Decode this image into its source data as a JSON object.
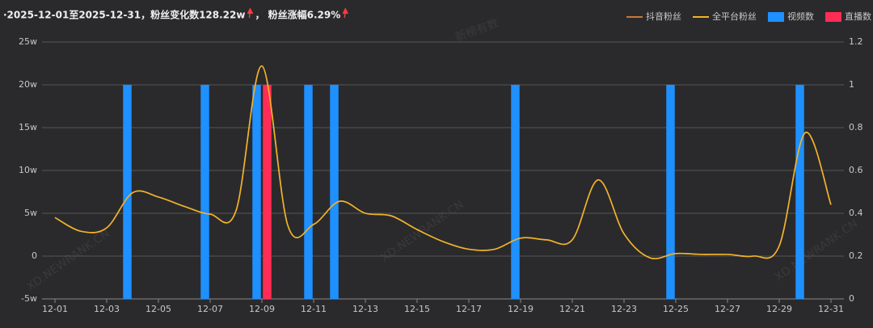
{
  "chart_data": {
    "type": "line-bar",
    "title": "·2025-12-01至2025-12-31，粉丝变化数128.22w",
    "subtitle": "，  粉丝涨幅6.29%",
    "watermarks": [
      "新榜有数",
      "XD.NEWRANK.CN"
    ],
    "categories": [
      "12-01",
      null,
      "12-03",
      null,
      "12-05",
      null,
      "12-07",
      null,
      "12-09",
      null,
      "12-11",
      null,
      "12-13",
      null,
      "12-15",
      null,
      "12-17",
      null,
      "12-19",
      null,
      "12-21",
      null,
      "12-23",
      null,
      "12-25",
      null,
      "12-27",
      null,
      "12-29",
      null,
      "12-31"
    ],
    "series": [
      {
        "name": "抖音粉丝",
        "type": "line",
        "color": "#c7793a",
        "values": [
          4.5,
          2.9,
          3.3,
          7.4,
          6.9,
          5.8,
          4.9,
          5.3,
          22.2,
          3.6,
          3.7,
          6.4,
          5.0,
          4.7,
          3.1,
          1.7,
          0.8,
          0.8,
          2.1,
          1.9,
          1.9,
          8.9,
          2.6,
          -0.2,
          0.3,
          0.2,
          0.2,
          0.0,
          1.2,
          14.4,
          6.0
        ]
      },
      {
        "name": "全平台粉丝",
        "type": "line",
        "color": "#f0b429",
        "values": [
          4.5,
          2.9,
          3.3,
          7.4,
          6.9,
          5.8,
          4.9,
          5.3,
          22.2,
          3.6,
          3.7,
          6.4,
          5.0,
          4.7,
          3.1,
          1.7,
          0.8,
          0.8,
          2.1,
          1.9,
          1.9,
          8.9,
          2.6,
          -0.2,
          0.3,
          0.2,
          0.2,
          0.0,
          1.2,
          14.4,
          6.0
        ]
      },
      {
        "name": "视频数",
        "type": "bar",
        "axis": "y2",
        "color": "#1e90ff",
        "values": [
          0,
          0,
          0,
          1,
          0,
          0,
          1,
          0,
          1,
          0,
          1,
          1,
          0,
          0,
          0,
          0,
          0,
          0,
          1,
          0,
          0,
          0,
          0,
          0,
          1,
          0,
          0,
          0,
          0,
          1,
          0
        ]
      },
      {
        "name": "直播数",
        "type": "bar",
        "axis": "y2",
        "color": "#ff2d55",
        "values": [
          0,
          0,
          0,
          0,
          0,
          0,
          0,
          0,
          1,
          0,
          0,
          0,
          0,
          0,
          0,
          0,
          0,
          0,
          0,
          0,
          0,
          0,
          0,
          0,
          0,
          0,
          0,
          0,
          0,
          0,
          0
        ]
      }
    ],
    "ylim": [
      -5,
      25
    ],
    "yticks": [
      {
        "value": -5,
        "label": "-5w"
      },
      0,
      {
        "value": 5,
        "label": "5w"
      },
      {
        "value": 10,
        "label": "10w"
      },
      {
        "value": 15,
        "label": "15w"
      },
      {
        "value": 20,
        "label": "20w"
      },
      {
        "value": 25,
        "label": "25w"
      }
    ],
    "y2lim": [
      0,
      1.2
    ],
    "y2ticks": [
      0,
      0.2,
      0.4,
      0.6,
      0.8,
      1,
      1.2
    ],
    "grid": true
  }
}
